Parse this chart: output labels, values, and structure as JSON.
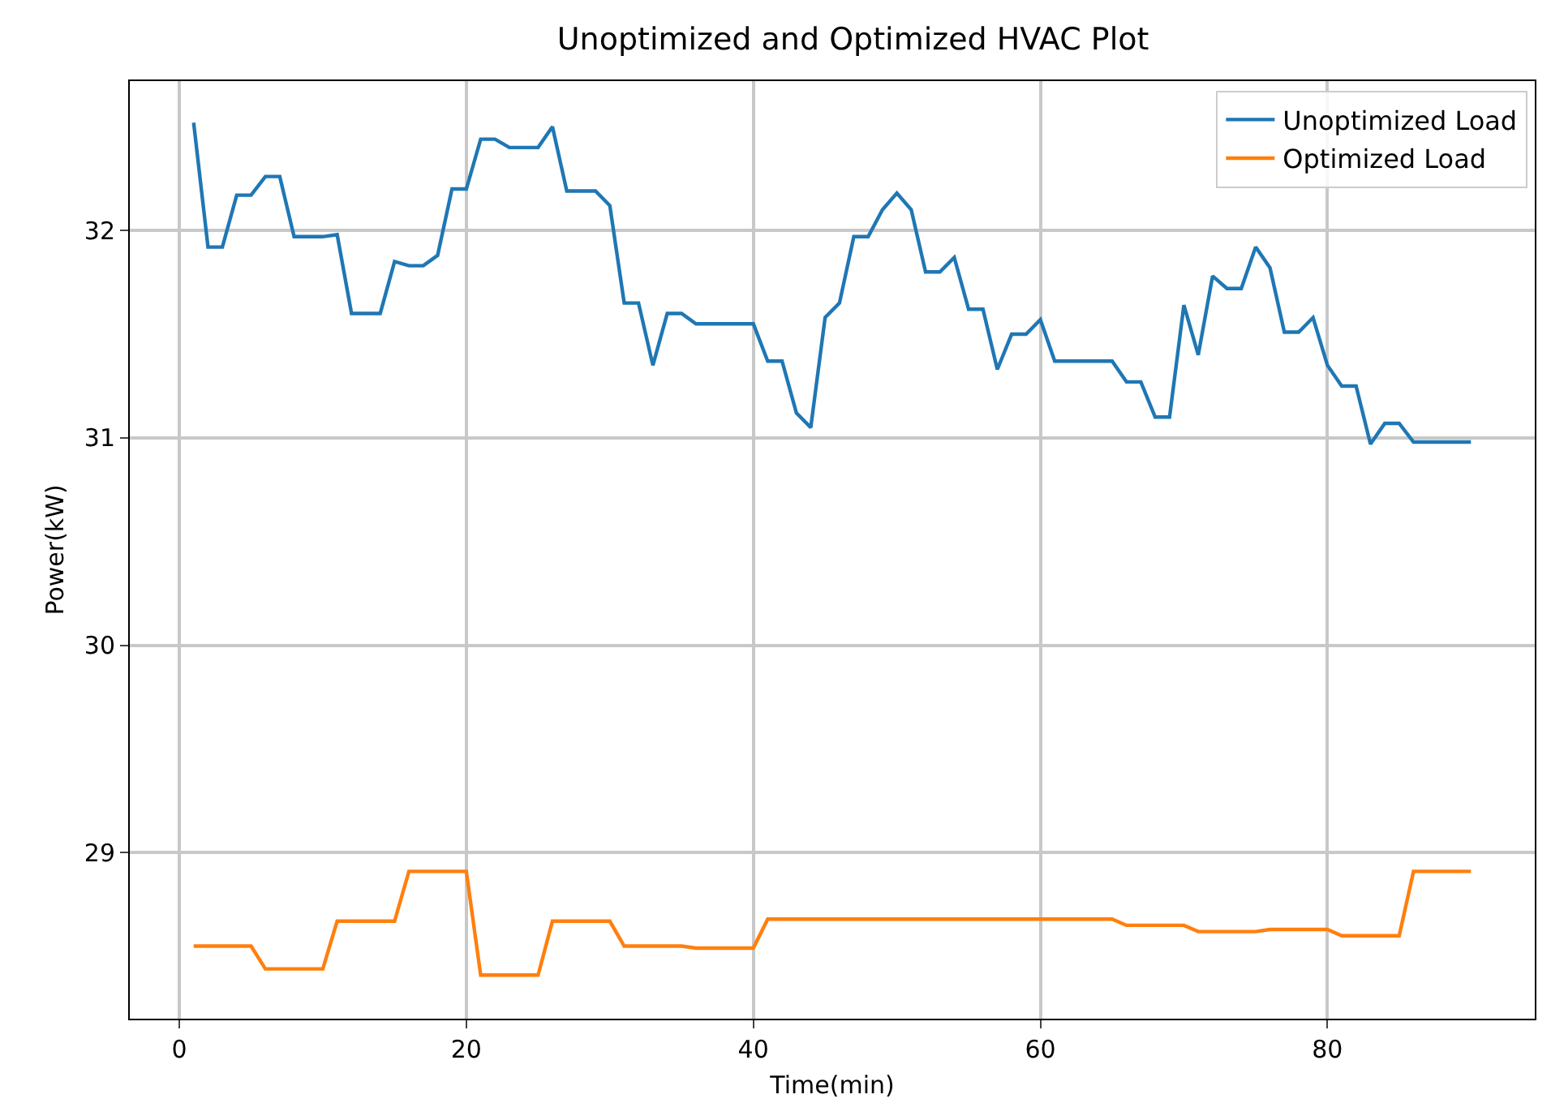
{
  "chart_data": {
    "type": "line",
    "title": "Unoptimized and Optimized HVAC Plot",
    "xlabel": "Time(min)",
    "ylabel": "Power(kW)",
    "x": [
      1,
      2,
      3,
      4,
      5,
      6,
      7,
      8,
      9,
      10,
      11,
      12,
      13,
      14,
      15,
      16,
      17,
      18,
      19,
      20,
      21,
      22,
      23,
      24,
      25,
      26,
      27,
      28,
      29,
      30,
      31,
      32,
      33,
      34,
      35,
      36,
      37,
      38,
      39,
      40,
      41,
      42,
      43,
      44,
      45,
      46,
      47,
      48,
      49,
      50,
      51,
      52,
      53,
      54,
      55,
      56,
      57,
      58,
      59,
      60,
      61,
      62,
      63,
      64,
      65,
      66,
      67,
      68,
      69,
      70,
      71,
      72,
      73,
      74,
      75,
      76,
      77,
      78,
      79,
      80,
      81,
      82,
      83,
      84,
      85,
      86,
      87,
      88,
      89,
      90
    ],
    "series": [
      {
        "name": "Unoptimized Load",
        "color": "#1f77b4",
        "values": [
          32.52,
          31.92,
          31.92,
          32.17,
          32.17,
          32.26,
          32.26,
          31.97,
          31.97,
          31.97,
          31.98,
          31.6,
          31.6,
          31.6,
          31.85,
          31.83,
          31.83,
          31.88,
          32.2,
          32.2,
          32.44,
          32.44,
          32.4,
          32.4,
          32.4,
          32.5,
          32.19,
          32.19,
          32.19,
          32.12,
          31.65,
          31.65,
          31.35,
          31.6,
          31.6,
          31.55,
          31.55,
          31.55,
          31.55,
          31.55,
          31.37,
          31.37,
          31.12,
          31.05,
          31.58,
          31.65,
          31.97,
          31.97,
          32.1,
          32.18,
          32.1,
          31.8,
          31.8,
          31.87,
          31.62,
          31.62,
          31.33,
          31.5,
          31.5,
          31.57,
          31.37,
          31.37,
          31.37,
          31.37,
          31.37,
          31.27,
          31.27,
          31.1,
          31.1,
          31.64,
          31.4,
          31.78,
          31.72,
          31.72,
          31.92,
          31.82,
          31.51,
          31.51,
          31.58,
          31.35,
          31.25,
          31.25,
          30.97,
          31.07,
          31.07,
          30.98,
          30.98,
          30.98,
          30.98,
          30.98
        ]
      },
      {
        "name": "Optimized Load",
        "color": "#ff7f0e",
        "values": [
          28.55,
          28.55,
          28.55,
          28.55,
          28.55,
          28.44,
          28.44,
          28.44,
          28.44,
          28.44,
          28.67,
          28.67,
          28.67,
          28.67,
          28.67,
          28.91,
          28.91,
          28.91,
          28.91,
          28.91,
          28.41,
          28.41,
          28.41,
          28.41,
          28.41,
          28.67,
          28.67,
          28.67,
          28.67,
          28.67,
          28.55,
          28.55,
          28.55,
          28.55,
          28.55,
          28.54,
          28.54,
          28.54,
          28.54,
          28.54,
          28.68,
          28.68,
          28.68,
          28.68,
          28.68,
          28.68,
          28.68,
          28.68,
          28.68,
          28.68,
          28.68,
          28.68,
          28.68,
          28.68,
          28.68,
          28.68,
          28.68,
          28.68,
          28.68,
          28.68,
          28.68,
          28.68,
          28.68,
          28.68,
          28.68,
          28.65,
          28.65,
          28.65,
          28.65,
          28.65,
          28.62,
          28.62,
          28.62,
          28.62,
          28.62,
          28.63,
          28.63,
          28.63,
          28.63,
          28.63,
          28.6,
          28.6,
          28.6,
          28.6,
          28.6,
          28.91,
          28.91,
          28.91,
          28.91,
          28.91
        ]
      }
    ],
    "xlim": [
      -3.45,
      94.45
    ],
    "ylim": [
      28.2,
      32.72
    ],
    "xticks": [
      0,
      20,
      40,
      60,
      80
    ],
    "yticks": [
      29,
      30,
      31,
      32
    ],
    "grid": true,
    "legend": "top right",
    "marker": "none",
    "line_style": "solid"
  }
}
